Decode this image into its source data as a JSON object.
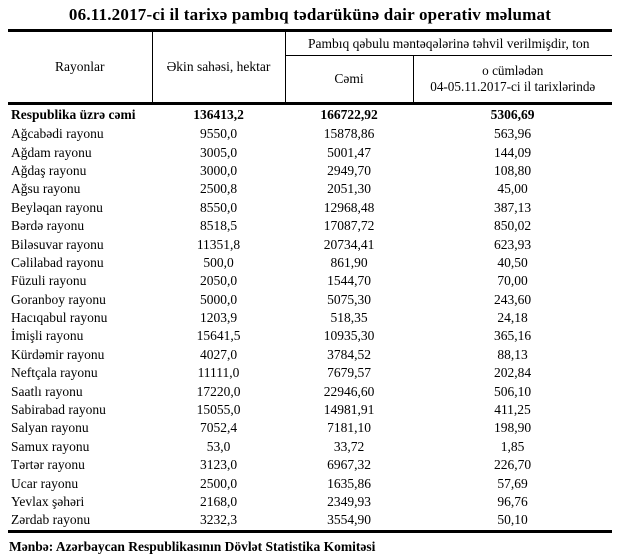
{
  "title": "06.11.2017-ci il tarixə pambıq tədarükünə dair operativ məlumat",
  "table": {
    "headers": {
      "rayonlar": "Rayonlar",
      "ekin_sahesi": "Əkin sahəsi, hektar",
      "group": "Pambıq qəbulu məntəqələrinə təhvil verilmişdir, ton",
      "cemi": "Cəmi",
      "ocumleden_line1": "o cümlədən",
      "ocumleden_line2": "04-05.11.2017-ci il tarixlərində"
    },
    "total_row": {
      "name": "Respublika üzrə cəmi",
      "area": "136413,2",
      "total": "166722,92",
      "recent": "5306,69"
    },
    "rows": [
      {
        "name": "Ağcabədi rayonu",
        "area": "9550,0",
        "total": "15878,86",
        "recent": "563,96"
      },
      {
        "name": "Ağdam rayonu",
        "area": "3005,0",
        "total": "5001,47",
        "recent": "144,09"
      },
      {
        "name": "Ağdaş rayonu",
        "area": "3000,0",
        "total": "2949,70",
        "recent": "108,80"
      },
      {
        "name": "Ağsu rayonu",
        "area": "2500,8",
        "total": "2051,30",
        "recent": "45,00"
      },
      {
        "name": "Beyləqan rayonu",
        "area": "8550,0",
        "total": "12968,48",
        "recent": "387,13"
      },
      {
        "name": "Bərdə rayonu",
        "area": "8518,5",
        "total": "17087,72",
        "recent": "850,02"
      },
      {
        "name": "Biləsuvar rayonu",
        "area": "11351,8",
        "total": "20734,41",
        "recent": "623,93"
      },
      {
        "name": "Cəlilabad rayonu",
        "area": "500,0",
        "total": "861,90",
        "recent": "40,50"
      },
      {
        "name": "Füzuli rayonu",
        "area": "2050,0",
        "total": "1544,70",
        "recent": "70,00"
      },
      {
        "name": "Goranboy rayonu",
        "area": "5000,0",
        "total": "5075,30",
        "recent": "243,60"
      },
      {
        "name": "Hacıqabul rayonu",
        "area": "1203,9",
        "total": "518,35",
        "recent": "24,18"
      },
      {
        "name": "İmişli rayonu",
        "area": "15641,5",
        "total": "10935,30",
        "recent": "365,16"
      },
      {
        "name": "Kürdəmir rayonu",
        "area": "4027,0",
        "total": "3784,52",
        "recent": "88,13"
      },
      {
        "name": "Neftçala rayonu",
        "area": "11111,0",
        "total": "7679,57",
        "recent": "202,84"
      },
      {
        "name": "Saatlı rayonu",
        "area": "17220,0",
        "total": "22946,60",
        "recent": "506,10"
      },
      {
        "name": "Sabirabad rayonu",
        "area": "15055,0",
        "total": "14981,91",
        "recent": "411,25"
      },
      {
        "name": "Salyan rayonu",
        "area": "7052,4",
        "total": "7181,10",
        "recent": "198,90"
      },
      {
        "name": "Samux rayonu",
        "area": "53,0",
        "total": "33,72",
        "recent": "1,85"
      },
      {
        "name": "Tərtər rayonu",
        "area": "3123,0",
        "total": "6967,32",
        "recent": "226,70"
      },
      {
        "name": "Ucar rayonu",
        "area": "2500,0",
        "total": "1635,86",
        "recent": "57,69"
      },
      {
        "name": "Yevlax şəhəri",
        "area": "2168,0",
        "total": "2349,93",
        "recent": "96,76"
      },
      {
        "name": "Zərdab rayonu",
        "area": "3232,3",
        "total": "3554,90",
        "recent": "50,10"
      }
    ]
  },
  "footer": {
    "source": "Mənbə: Azərbaycan Respublikasının Dövlət Statistika Komitəsi"
  }
}
